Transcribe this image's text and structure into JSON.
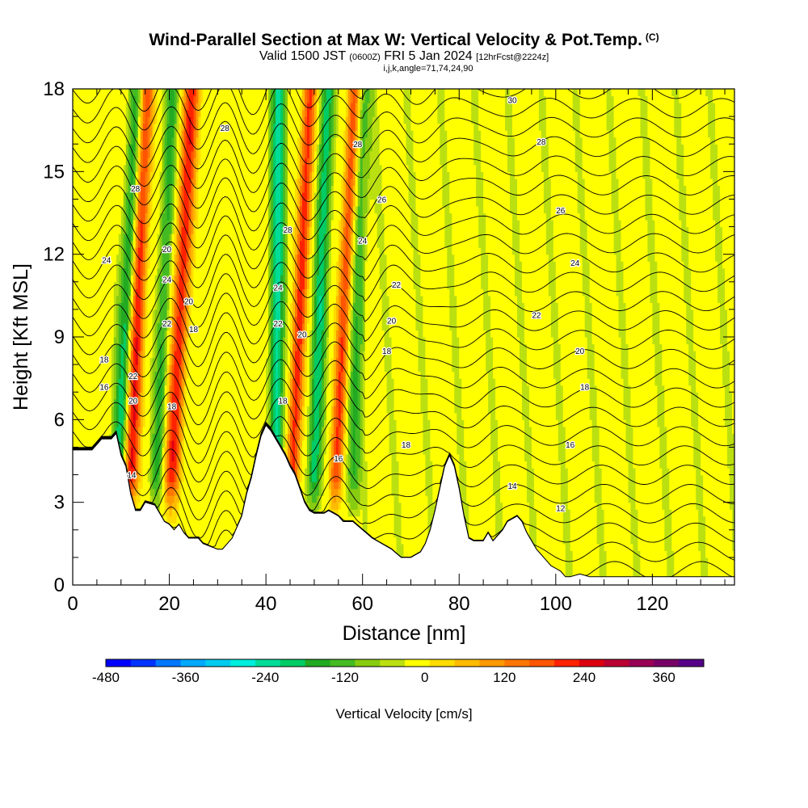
{
  "header": {
    "title": "Wind-Parallel Section at Max W: Vertical Velocity & Pot.Temp.",
    "title_tag": "(C)",
    "valid_prefix": "Valid 1500 JST",
    "valid_zulu": "(0600Z)",
    "valid_date": "FRI 5 Jan 2024",
    "forecast": "[12hrFcst@2224z]",
    "indices": "i,j,k,angle=71,74,24,90"
  },
  "chart_data": {
    "type": "heatmap",
    "xlabel": "Distance [nm]",
    "ylabel": "Height [Kft MSL]",
    "xlim": [
      0,
      137
    ],
    "ylim": [
      0,
      18
    ],
    "x_ticks": [
      0,
      20,
      40,
      60,
      80,
      100,
      120
    ],
    "y_ticks": [
      0,
      3,
      6,
      9,
      12,
      15,
      18
    ],
    "colorbar": {
      "label": "Vertical Velocity [cm/s]",
      "range": [
        -480,
        420
      ],
      "step": 40,
      "tick_values": [
        -480,
        -360,
        -240,
        -120,
        0,
        120,
        240,
        360
      ],
      "colors": [
        "#0000ff",
        "#0033ff",
        "#0077ff",
        "#00aaff",
        "#00ccee",
        "#00eedd",
        "#00dd99",
        "#00cc66",
        "#22aa22",
        "#44bb22",
        "#88cc11",
        "#bbe011",
        "#ffff00",
        "#ffdd00",
        "#ffbb00",
        "#ff9900",
        "#ff7700",
        "#ff5500",
        "#ff2200",
        "#dd0011",
        "#bb0033",
        "#990055",
        "#770066",
        "#550088"
      ]
    },
    "terrain_kft": [
      [
        0,
        4.9
      ],
      [
        4,
        4.9
      ],
      [
        6,
        5.3
      ],
      [
        8,
        5.3
      ],
      [
        9,
        5.5
      ],
      [
        10,
        4.7
      ],
      [
        11,
        4.3
      ],
      [
        12,
        3.3
      ],
      [
        13,
        2.7
      ],
      [
        14,
        2.7
      ],
      [
        15,
        3.0
      ],
      [
        17,
        2.9
      ],
      [
        18,
        2.6
      ],
      [
        19,
        2.3
      ],
      [
        20,
        2.2
      ],
      [
        21,
        2.0
      ],
      [
        22,
        2.2
      ],
      [
        23,
        1.9
      ],
      [
        24,
        1.7
      ],
      [
        26,
        1.7
      ],
      [
        27,
        1.5
      ],
      [
        30,
        1.3
      ],
      [
        31,
        1.3
      ],
      [
        32,
        1.5
      ],
      [
        33,
        1.7
      ],
      [
        35,
        2.5
      ],
      [
        36,
        3.3
      ],
      [
        37,
        3.9
      ],
      [
        38,
        4.7
      ],
      [
        39,
        5.4
      ],
      [
        40,
        5.8
      ],
      [
        41,
        5.6
      ],
      [
        42,
        5.3
      ],
      [
        43,
        5.0
      ],
      [
        44,
        4.7
      ],
      [
        45,
        4.3
      ],
      [
        46,
        4.0
      ],
      [
        47,
        3.5
      ],
      [
        48,
        3.0
      ],
      [
        49,
        2.7
      ],
      [
        50,
        2.6
      ],
      [
        52,
        2.6
      ],
      [
        53,
        2.7
      ],
      [
        55,
        2.5
      ],
      [
        56,
        2.3
      ],
      [
        58,
        2.3
      ],
      [
        60,
        2.0
      ],
      [
        62,
        1.7
      ],
      [
        64,
        1.5
      ],
      [
        66,
        1.3
      ],
      [
        68,
        1.0
      ],
      [
        70,
        1.0
      ],
      [
        72,
        1.2
      ],
      [
        73,
        1.5
      ],
      [
        74,
        2.0
      ],
      [
        75,
        2.7
      ],
      [
        76,
        3.5
      ],
      [
        77,
        4.3
      ],
      [
        78,
        4.7
      ],
      [
        79,
        4.3
      ],
      [
        80,
        3.5
      ],
      [
        81,
        2.5
      ],
      [
        82,
        1.7
      ],
      [
        83,
        1.6
      ],
      [
        85,
        1.6
      ],
      [
        86,
        1.9
      ],
      [
        87,
        1.6
      ],
      [
        89,
        2.0
      ],
      [
        90,
        2.3
      ],
      [
        92,
        2.5
      ],
      [
        93,
        2.3
      ],
      [
        94,
        1.9
      ],
      [
        95,
        1.6
      ],
      [
        96,
        1.3
      ],
      [
        97,
        1.1
      ],
      [
        98,
        0.9
      ],
      [
        99,
        0.7
      ],
      [
        100,
        0.6
      ],
      [
        101,
        0.5
      ],
      [
        102,
        0.3
      ],
      [
        103,
        0.3
      ],
      [
        105,
        0.4
      ],
      [
        107,
        0.3
      ],
      [
        137,
        0.3
      ]
    ],
    "theta_levels": [
      12,
      14,
      16,
      18,
      20,
      22,
      24,
      26,
      28,
      30
    ],
    "contour_labels": [
      {
        "x": 12.2,
        "y": 4.0,
        "v": "14"
      },
      {
        "x": 55.0,
        "y": 4.6,
        "v": "16"
      },
      {
        "x": 69.0,
        "y": 5.1,
        "v": "18"
      },
      {
        "x": 91.0,
        "y": 3.6,
        "v": "14"
      },
      {
        "x": 101.0,
        "y": 2.8,
        "v": "12"
      },
      {
        "x": 103.0,
        "y": 5.1,
        "v": "16"
      },
      {
        "x": 106.0,
        "y": 7.2,
        "v": "18"
      },
      {
        "x": 105.0,
        "y": 8.5,
        "v": "20"
      },
      {
        "x": 96.0,
        "y": 9.8,
        "v": "22"
      },
      {
        "x": 104.0,
        "y": 11.7,
        "v": "24"
      },
      {
        "x": 101.0,
        "y": 13.6,
        "v": "26"
      },
      {
        "x": 97.0,
        "y": 16.1,
        "v": "28"
      },
      {
        "x": 91.0,
        "y": 17.6,
        "v": "30"
      },
      {
        "x": 7.0,
        "y": 11.8,
        "v": "24"
      },
      {
        "x": 6.5,
        "y": 8.2,
        "v": "18"
      },
      {
        "x": 6.5,
        "y": 7.2,
        "v": "16"
      },
      {
        "x": 12.5,
        "y": 7.6,
        "v": "22"
      },
      {
        "x": 12.5,
        "y": 6.7,
        "v": "20"
      },
      {
        "x": 13.0,
        "y": 14.4,
        "v": "28"
      },
      {
        "x": 19.5,
        "y": 12.2,
        "v": "20"
      },
      {
        "x": 19.5,
        "y": 11.1,
        "v": "24"
      },
      {
        "x": 19.5,
        "y": 9.5,
        "v": "22"
      },
      {
        "x": 24.0,
        "y": 10.3,
        "v": "20"
      },
      {
        "x": 25.0,
        "y": 9.3,
        "v": "18"
      },
      {
        "x": 20.5,
        "y": 6.5,
        "v": "18"
      },
      {
        "x": 31.5,
        "y": 16.6,
        "v": "28"
      },
      {
        "x": 44.5,
        "y": 12.9,
        "v": "28"
      },
      {
        "x": 42.5,
        "y": 10.8,
        "v": "24"
      },
      {
        "x": 42.5,
        "y": 9.5,
        "v": "22"
      },
      {
        "x": 47.5,
        "y": 9.1,
        "v": "20"
      },
      {
        "x": 43.5,
        "y": 6.7,
        "v": "18"
      },
      {
        "x": 59.0,
        "y": 16.0,
        "v": "28"
      },
      {
        "x": 64.0,
        "y": 14.0,
        "v": "26"
      },
      {
        "x": 60.0,
        "y": 12.5,
        "v": "24"
      },
      {
        "x": 67.0,
        "y": 10.9,
        "v": "22"
      },
      {
        "x": 66.0,
        "y": 9.6,
        "v": "20"
      },
      {
        "x": 65.0,
        "y": 8.5,
        "v": "18"
      }
    ],
    "updraft_bands": [
      {
        "base_x": 12.0,
        "slope": 0.22,
        "amp": 300,
        "width": 1.6
      },
      {
        "base_x": 20.5,
        "slope": 0.3,
        "amp": 270,
        "width": 1.7
      },
      {
        "base_x": 45.5,
        "slope": 0.26,
        "amp": 260,
        "width": 1.4
      },
      {
        "base_x": 54.5,
        "slope": 0.28,
        "amp": 240,
        "width": 1.4
      }
    ],
    "downdraft_bands": [
      {
        "base_x": 9.5,
        "slope": 0.3,
        "amp": -200,
        "width": 1.6
      },
      {
        "base_x": 17.5,
        "slope": 0.22,
        "amp": -130,
        "width": 1.4
      },
      {
        "base_x": 42.0,
        "slope": 0.05,
        "amp": -220,
        "width": 1.4
      },
      {
        "base_x": 50.0,
        "slope": 0.2,
        "amp": -190,
        "width": 1.4
      },
      {
        "base_x": 58.0,
        "slope": 0.15,
        "amp": -120,
        "width": 1.6
      }
    ]
  }
}
